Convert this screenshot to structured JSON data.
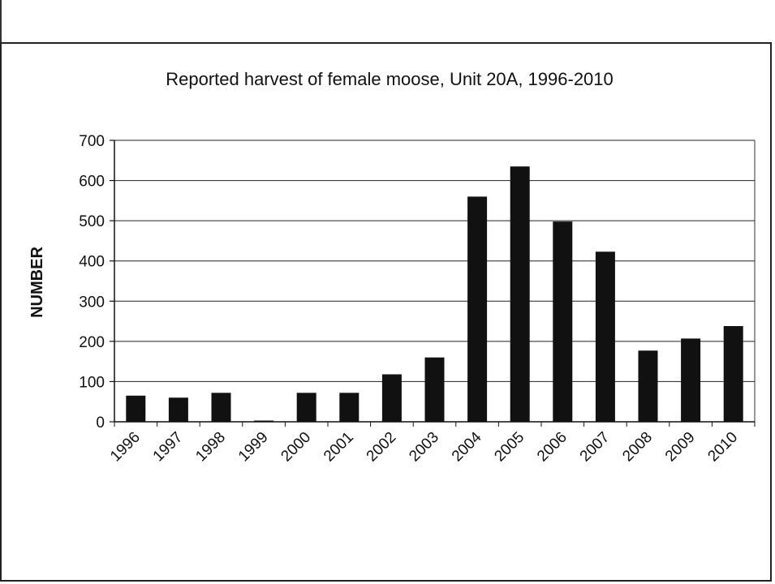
{
  "chart_data": {
    "type": "bar",
    "title": "Reported harvest of female moose, Unit 20A, 1996-2010",
    "xlabel": "",
    "ylabel": "NUMBER",
    "categories": [
      "1996",
      "1997",
      "1998",
      "1999",
      "2000",
      "2001",
      "2002",
      "2003",
      "2004",
      "2005",
      "2006",
      "2007",
      "2008",
      "2009",
      "2010"
    ],
    "values": [
      65,
      60,
      72,
      3,
      72,
      72,
      118,
      160,
      560,
      635,
      498,
      423,
      177,
      207,
      238
    ],
    "ylim": [
      0,
      700
    ],
    "yticks": [
      0,
      100,
      200,
      300,
      400,
      500,
      600,
      700
    ],
    "grid": true,
    "legend": "none",
    "bar_color": "#111111",
    "grid_color": "#222222"
  }
}
